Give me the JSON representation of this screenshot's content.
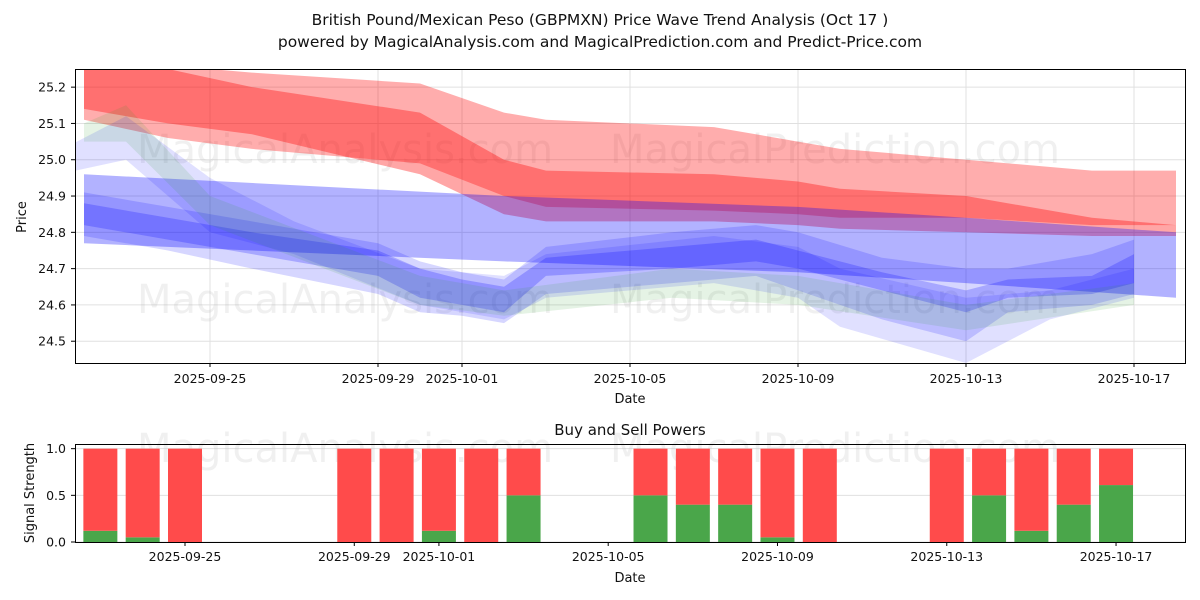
{
  "title": {
    "line1": "British Pound/Mexican Peso (GBPMXN) Price Wave Trend Analysis (Oct 17 )",
    "line2": "powered by MagicalAnalysis.com and MagicalPrediction.com and Predict-Price.com"
  },
  "watermarks": [
    "MagicalAnalysis.com",
    "MagicalPrediction.com"
  ],
  "colors": {
    "red_band": "#ff0000",
    "blue_band": "#0000ff",
    "green_band": "#2ca02c",
    "buy": "#4aa64a",
    "sell": "#ff4b4b",
    "grid": "#e0e0e0"
  },
  "chart_data": [
    {
      "type": "area",
      "title": "British Pound/Mexican Peso (GBPMXN) Price Wave Trend Analysis (Oct 17 )",
      "xlabel": "Date",
      "ylabel": "Price",
      "ylim": [
        24.44,
        25.25
      ],
      "xlim": [
        "2025-09-21",
        "2025-10-18"
      ],
      "grid": true,
      "x_ticks": [
        "2025-09-25",
        "2025-09-29",
        "2025-10-01",
        "2025-10-05",
        "2025-10-09",
        "2025-10-13",
        "2025-10-17"
      ],
      "y_ticks": [
        "24.5",
        "24.6",
        "24.7",
        "24.8",
        "24.9",
        "25.0",
        "25.1",
        "25.2"
      ],
      "series": [
        {
          "name": "red-wide-band",
          "color": "#ff0000",
          "opacity": 0.32,
          "x": [
            "2025-09-22",
            "2025-09-24",
            "2025-09-26",
            "2025-09-30",
            "2025-10-02",
            "2025-10-03",
            "2025-10-07",
            "2025-10-09",
            "2025-10-10",
            "2025-10-13",
            "2025-10-16",
            "2025-10-18"
          ],
          "upper": [
            25.27,
            25.26,
            25.24,
            25.21,
            25.13,
            25.11,
            25.09,
            25.05,
            25.03,
            25.0,
            24.97,
            24.97
          ],
          "lower": [
            25.11,
            25.06,
            25.03,
            24.99,
            24.9,
            24.87,
            24.86,
            24.85,
            24.84,
            24.84,
            24.82,
            24.82
          ]
        },
        {
          "name": "red-core-band",
          "color": "#ff0000",
          "opacity": 0.35,
          "x": [
            "2025-09-22",
            "2025-09-24",
            "2025-09-26",
            "2025-09-30",
            "2025-10-02",
            "2025-10-03",
            "2025-10-07",
            "2025-10-09",
            "2025-10-10",
            "2025-10-13",
            "2025-10-16",
            "2025-10-18"
          ],
          "upper": [
            25.28,
            25.25,
            25.2,
            25.13,
            25.0,
            24.97,
            24.96,
            24.94,
            24.92,
            24.9,
            24.84,
            24.82
          ],
          "lower": [
            25.14,
            25.1,
            25.07,
            24.96,
            24.85,
            24.83,
            24.83,
            24.82,
            24.81,
            24.8,
            24.79,
            24.79
          ]
        },
        {
          "name": "blue-wide-band",
          "color": "#0000ff",
          "opacity": 0.3,
          "x": [
            "2025-09-22",
            "2025-10-02",
            "2025-10-09",
            "2025-10-13",
            "2025-10-18"
          ],
          "upper": [
            24.96,
            24.9,
            24.87,
            24.84,
            24.8
          ],
          "lower": [
            24.77,
            24.72,
            24.69,
            24.66,
            24.62
          ]
        },
        {
          "name": "blue-wave-1",
          "color": "#0000ff",
          "opacity": 0.22,
          "x": [
            "2025-09-22",
            "2025-09-24",
            "2025-09-26",
            "2025-09-29",
            "2025-09-30",
            "2025-10-01",
            "2025-10-02",
            "2025-10-03",
            "2025-10-06",
            "2025-10-08",
            "2025-10-09",
            "2025-10-11",
            "2025-10-13",
            "2025-10-14",
            "2025-10-16",
            "2025-10-17"
          ],
          "upper": [
            24.88,
            24.84,
            24.8,
            24.75,
            24.7,
            24.67,
            24.65,
            24.73,
            24.76,
            24.78,
            24.75,
            24.69,
            24.64,
            24.67,
            24.68,
            24.74
          ],
          "lower": [
            24.82,
            24.78,
            24.74,
            24.68,
            24.62,
            24.6,
            24.58,
            24.68,
            24.7,
            24.72,
            24.7,
            24.64,
            24.58,
            24.62,
            24.63,
            24.66
          ]
        },
        {
          "name": "blue-wave-2",
          "color": "#0000ff",
          "opacity": 0.16,
          "x": [
            "2025-09-22",
            "2025-09-24",
            "2025-09-26",
            "2025-09-29",
            "2025-09-30",
            "2025-10-01",
            "2025-10-02",
            "2025-10-03",
            "2025-10-06",
            "2025-10-08",
            "2025-10-09",
            "2025-10-11",
            "2025-10-13",
            "2025-10-14",
            "2025-10-16",
            "2025-10-17"
          ],
          "upper": [
            24.91,
            24.87,
            24.83,
            24.77,
            24.72,
            24.69,
            24.67,
            24.76,
            24.8,
            24.82,
            24.8,
            24.73,
            24.7,
            24.7,
            24.74,
            24.78
          ],
          "lower": [
            24.79,
            24.75,
            24.7,
            24.63,
            24.58,
            24.57,
            24.55,
            24.63,
            24.66,
            24.68,
            24.64,
            24.56,
            24.5,
            24.58,
            24.6,
            24.63
          ]
        },
        {
          "name": "blue-wave-3",
          "color": "#0000ff",
          "opacity": 0.12,
          "x": [
            "2025-09-21",
            "2025-09-23",
            "2025-09-25",
            "2025-09-27",
            "2025-09-30",
            "2025-10-02",
            "2025-10-03",
            "2025-10-07",
            "2025-10-09",
            "2025-10-10",
            "2025-10-13",
            "2025-10-15",
            "2025-10-17"
          ],
          "upper": [
            25.0,
            25.12,
            24.95,
            24.83,
            24.7,
            24.68,
            24.74,
            24.79,
            24.76,
            24.7,
            24.62,
            24.64,
            24.7
          ],
          "lower": [
            24.95,
            25.0,
            24.8,
            24.74,
            24.6,
            24.56,
            24.62,
            24.66,
            24.62,
            24.54,
            24.44,
            24.56,
            24.62
          ]
        },
        {
          "name": "green-wave",
          "color": "#2ca02c",
          "opacity": 0.12,
          "x": [
            "2025-09-22",
            "2025-09-23",
            "2025-09-25",
            "2025-09-30",
            "2025-10-02",
            "2025-10-06",
            "2025-10-09",
            "2025-10-13",
            "2025-10-17"
          ],
          "upper": [
            25.1,
            25.15,
            24.9,
            24.68,
            24.64,
            24.7,
            24.68,
            24.6,
            24.66
          ],
          "lower": [
            25.05,
            25.05,
            24.82,
            24.6,
            24.57,
            24.62,
            24.6,
            24.53,
            24.6
          ]
        }
      ]
    },
    {
      "type": "bar",
      "title": "Buy and Sell Powers",
      "xlabel": "Date",
      "ylabel": "Signal Strength",
      "ylim": [
        0,
        1.05
      ],
      "xlim": [
        "2025-09-21",
        "2025-10-18"
      ],
      "grid": true,
      "x_ticks": [
        "2025-09-25",
        "2025-09-29",
        "2025-10-01",
        "2025-10-05",
        "2025-10-09",
        "2025-10-13",
        "2025-10-17"
      ],
      "y_ticks": [
        "0.0",
        "0.5",
        "1.0"
      ],
      "categories": [
        "2025-09-23",
        "2025-09-24",
        "2025-09-25",
        "2025-09-29",
        "2025-09-30",
        "2025-10-01",
        "2025-10-02",
        "2025-10-03",
        "2025-10-06",
        "2025-10-07",
        "2025-10-08",
        "2025-10-09",
        "2025-10-10",
        "2025-10-13",
        "2025-10-14",
        "2025-10-15",
        "2025-10-16",
        "2025-10-17"
      ],
      "series": [
        {
          "name": "Buy",
          "color": "#4aa64a",
          "values": [
            0.12,
            0.05,
            0.0,
            0.0,
            0.0,
            0.12,
            0.0,
            0.5,
            0.5,
            0.4,
            0.4,
            0.05,
            0.0,
            0.0,
            0.5,
            0.12,
            0.4,
            0.61
          ]
        },
        {
          "name": "Sell",
          "color": "#ff4b4b",
          "values": [
            0.88,
            0.95,
            1.0,
            1.0,
            1.0,
            0.88,
            1.0,
            0.5,
            0.5,
            0.6,
            0.6,
            0.95,
            1.0,
            1.0,
            0.5,
            0.88,
            0.6,
            0.39
          ]
        }
      ]
    }
  ]
}
